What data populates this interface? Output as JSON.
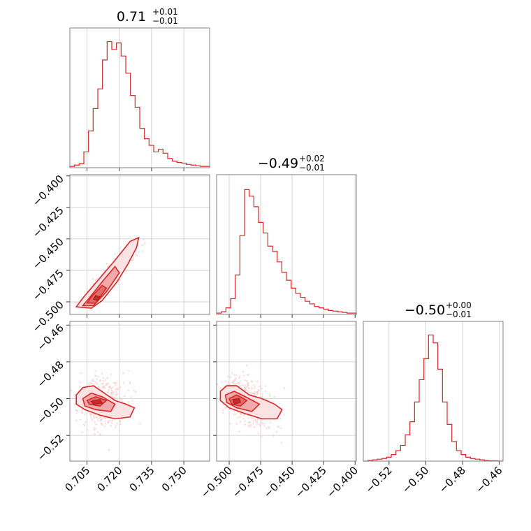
{
  "chart_data": {
    "type": "corner",
    "color": "#d62728",
    "parameters": [
      {
        "title_value": "0.71",
        "title_plus": "+0.01",
        "title_minus": "−0.01",
        "range": [
          0.697,
          0.762
        ],
        "ticks": [
          0.705,
          0.72,
          0.735,
          0.75
        ],
        "tick_labels": [
          "0.705",
          "0.720",
          "0.735",
          "0.750"
        ],
        "hist_density": [
          0.01,
          0.02,
          0.03,
          0.12,
          0.28,
          0.45,
          0.6,
          0.82,
          0.96,
          0.9,
          0.95,
          0.85,
          0.72,
          0.55,
          0.46,
          0.3,
          0.22,
          0.17,
          0.12,
          0.14,
          0.11,
          0.07,
          0.05,
          0.04,
          0.035,
          0.025,
          0.02,
          0.015,
          0.01,
          0.01
        ]
      },
      {
        "title_value": "−0.49",
        "title_plus": "+0.02",
        "title_minus": "−0.01",
        "range": [
          -0.51,
          -0.399
        ],
        "ticks": [
          -0.5,
          -0.475,
          -0.45,
          -0.425,
          -0.4
        ],
        "tick_labels": [
          "−0.400",
          "−0.425",
          "−0.450",
          "−0.475",
          "−0.500"
        ],
        "tick_labels_x": [
          "−0.500",
          "−0.475",
          "−0.450",
          "−0.425",
          "−0.400"
        ],
        "hist_density": [
          0.01,
          0.02,
          0.05,
          0.12,
          0.3,
          0.6,
          0.95,
          0.9,
          0.82,
          0.7,
          0.62,
          0.52,
          0.48,
          0.4,
          0.32,
          0.26,
          0.2,
          0.16,
          0.13,
          0.1,
          0.08,
          0.06,
          0.05,
          0.04,
          0.03,
          0.025,
          0.02,
          0.015,
          0.01,
          0.01
        ]
      },
      {
        "title_value": "−0.50",
        "title_plus": "+0.00",
        "title_minus": "−0.01",
        "range": [
          -0.534,
          -0.458
        ],
        "ticks": [
          -0.52,
          -0.5,
          -0.48,
          -0.46
        ],
        "tick_labels": [
          "−0.46",
          "−0.48",
          "−0.50",
          "−0.52"
        ],
        "tick_labels_x": [
          "−0.52",
          "−0.50",
          "−0.48",
          "−0.46"
        ],
        "hist_density": [
          0.0,
          0.005,
          0.01,
          0.015,
          0.02,
          0.03,
          0.05,
          0.08,
          0.12,
          0.2,
          0.3,
          0.45,
          0.62,
          0.78,
          0.96,
          0.9,
          0.7,
          0.45,
          0.28,
          0.15,
          0.08,
          0.05,
          0.03,
          0.02,
          0.015,
          0.01,
          0.005,
          0.003,
          0.002,
          0.0
        ]
      }
    ],
    "pairs": [
      {
        "x_param": 0,
        "y_param": 1,
        "correlation": "positive",
        "contour_levels": [
          [
            [
              0.7,
              -0.504
            ],
            [
              0.707,
              -0.505
            ],
            [
              0.712,
              -0.499
            ],
            [
              0.719,
              -0.484
            ],
            [
              0.724,
              -0.47
            ],
            [
              0.728,
              -0.457
            ],
            [
              0.729,
              -0.449
            ],
            [
              0.725,
              -0.452
            ],
            [
              0.718,
              -0.467
            ],
            [
              0.71,
              -0.483
            ],
            [
              0.703,
              -0.497
            ]
          ],
          [
            [
              0.703,
              -0.503
            ],
            [
              0.708,
              -0.503
            ],
            [
              0.714,
              -0.492
            ],
            [
              0.72,
              -0.477
            ],
            [
              0.718,
              -0.472
            ],
            [
              0.712,
              -0.484
            ],
            [
              0.706,
              -0.497
            ]
          ],
          [
            [
              0.705,
              -0.501
            ],
            [
              0.709,
              -0.501
            ],
            [
              0.714,
              -0.489
            ],
            [
              0.712,
              -0.487
            ],
            [
              0.707,
              -0.496
            ]
          ],
          [
            [
              0.708,
              -0.498
            ],
            [
              0.71,
              -0.499
            ],
            [
              0.711,
              -0.496
            ],
            [
              0.709,
              -0.495
            ]
          ]
        ]
      },
      {
        "x_param": 0,
        "y_param": 2,
        "correlation": "none",
        "contour_levels": [
          [
            [
              0.7,
              -0.498
            ],
            [
              0.703,
              -0.494
            ],
            [
              0.708,
              -0.493
            ],
            [
              0.713,
              -0.497
            ],
            [
              0.718,
              -0.501
            ],
            [
              0.723,
              -0.503
            ],
            [
              0.727,
              -0.505
            ],
            [
              0.725,
              -0.51
            ],
            [
              0.718,
              -0.511
            ],
            [
              0.711,
              -0.509
            ],
            [
              0.704,
              -0.506
            ],
            [
              0.7,
              -0.503
            ]
          ],
          [
            [
              0.703,
              -0.5
            ],
            [
              0.707,
              -0.497
            ],
            [
              0.712,
              -0.499
            ],
            [
              0.718,
              -0.503
            ],
            [
              0.716,
              -0.507
            ],
            [
              0.709,
              -0.506
            ],
            [
              0.704,
              -0.504
            ]
          ],
          [
            [
              0.705,
              -0.501
            ],
            [
              0.709,
              -0.499
            ],
            [
              0.714,
              -0.501
            ],
            [
              0.711,
              -0.504
            ],
            [
              0.706,
              -0.503
            ]
          ],
          [
            [
              0.707,
              -0.5015
            ],
            [
              0.711,
              -0.5005
            ],
            [
              0.712,
              -0.5025
            ],
            [
              0.708,
              -0.503
            ]
          ]
        ]
      },
      {
        "x_param": 1,
        "y_param": 2,
        "correlation": "negative",
        "contour_levels": [
          [
            [
              -0.507,
              -0.496
            ],
            [
              -0.502,
              -0.493
            ],
            [
              -0.494,
              -0.493
            ],
            [
              -0.484,
              -0.498
            ],
            [
              -0.474,
              -0.5
            ],
            [
              -0.464,
              -0.503
            ],
            [
              -0.458,
              -0.506
            ],
            [
              -0.462,
              -0.511
            ],
            [
              -0.474,
              -0.511
            ],
            [
              -0.488,
              -0.508
            ],
            [
              -0.5,
              -0.505
            ],
            [
              -0.507,
              -0.501
            ]
          ],
          [
            [
              -0.503,
              -0.498
            ],
            [
              -0.496,
              -0.496
            ],
            [
              -0.487,
              -0.499
            ],
            [
              -0.476,
              -0.503
            ],
            [
              -0.482,
              -0.507
            ],
            [
              -0.494,
              -0.505
            ],
            [
              -0.502,
              -0.502
            ]
          ],
          [
            [
              -0.5,
              -0.5
            ],
            [
              -0.494,
              -0.498
            ],
            [
              -0.486,
              -0.501
            ],
            [
              -0.491,
              -0.504
            ],
            [
              -0.498,
              -0.503
            ]
          ],
          [
            [
              -0.497,
              -0.5005
            ],
            [
              -0.492,
              -0.5
            ],
            [
              -0.491,
              -0.502
            ],
            [
              -0.496,
              -0.503
            ]
          ]
        ]
      }
    ]
  }
}
